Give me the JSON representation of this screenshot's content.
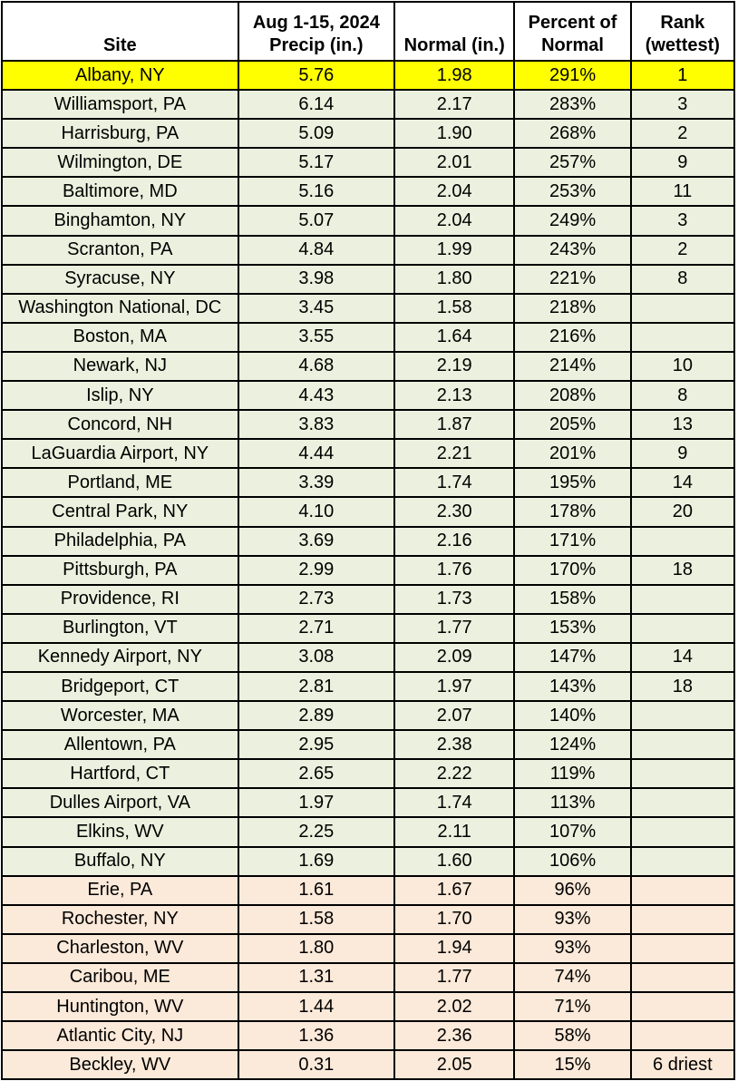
{
  "header": {
    "site": "Site",
    "precip_line1": "Aug 1-15, 2024",
    "precip_line2": "Precip (in.)",
    "normal": "Normal (in.)",
    "percent_line1": "Percent of",
    "percent_line2": "Normal",
    "rank_line1": "Rank",
    "rank_line2": "(wettest)"
  },
  "colors": {
    "yellow": "#ffff00",
    "green": "#ebf1de",
    "peach": "#fbe9d9",
    "border": "#000000"
  },
  "chart_data": {
    "type": "table",
    "columns": [
      "Site",
      "Aug 1-15, 2024 Precip (in.)",
      "Normal (in.)",
      "Percent of Normal",
      "Rank (wettest)"
    ],
    "rows": [
      {
        "site": "Albany, NY",
        "precip": "5.76",
        "normal": "1.98",
        "percent": "291%",
        "rank": "1",
        "band": "yellow"
      },
      {
        "site": "Williamsport, PA",
        "precip": "6.14",
        "normal": "2.17",
        "percent": "283%",
        "rank": "3",
        "band": "green"
      },
      {
        "site": "Harrisburg, PA",
        "precip": "5.09",
        "normal": "1.90",
        "percent": "268%",
        "rank": "2",
        "band": "green"
      },
      {
        "site": "Wilmington, DE",
        "precip": "5.17",
        "normal": "2.01",
        "percent": "257%",
        "rank": "9",
        "band": "green"
      },
      {
        "site": "Baltimore, MD",
        "precip": "5.16",
        "normal": "2.04",
        "percent": "253%",
        "rank": "11",
        "band": "green"
      },
      {
        "site": "Binghamton, NY",
        "precip": "5.07",
        "normal": "2.04",
        "percent": "249%",
        "rank": "3",
        "band": "green"
      },
      {
        "site": "Scranton, PA",
        "precip": "4.84",
        "normal": "1.99",
        "percent": "243%",
        "rank": "2",
        "band": "green"
      },
      {
        "site": "Syracuse, NY",
        "precip": "3.98",
        "normal": "1.80",
        "percent": "221%",
        "rank": "8",
        "band": "green"
      },
      {
        "site": "Washington National, DC",
        "precip": "3.45",
        "normal": "1.58",
        "percent": "218%",
        "rank": "",
        "band": "green"
      },
      {
        "site": "Boston, MA",
        "precip": "3.55",
        "normal": "1.64",
        "percent": "216%",
        "rank": "",
        "band": "green"
      },
      {
        "site": "Newark, NJ",
        "precip": "4.68",
        "normal": "2.19",
        "percent": "214%",
        "rank": "10",
        "band": "green"
      },
      {
        "site": "Islip, NY",
        "precip": "4.43",
        "normal": "2.13",
        "percent": "208%",
        "rank": "8",
        "band": "green"
      },
      {
        "site": "Concord, NH",
        "precip": "3.83",
        "normal": "1.87",
        "percent": "205%",
        "rank": "13",
        "band": "green"
      },
      {
        "site": "LaGuardia Airport, NY",
        "precip": "4.44",
        "normal": "2.21",
        "percent": "201%",
        "rank": "9",
        "band": "green"
      },
      {
        "site": "Portland, ME",
        "precip": "3.39",
        "normal": "1.74",
        "percent": "195%",
        "rank": "14",
        "band": "green"
      },
      {
        "site": "Central Park, NY",
        "precip": "4.10",
        "normal": "2.30",
        "percent": "178%",
        "rank": "20",
        "band": "green"
      },
      {
        "site": "Philadelphia, PA",
        "precip": "3.69",
        "normal": "2.16",
        "percent": "171%",
        "rank": "",
        "band": "green"
      },
      {
        "site": "Pittsburgh, PA",
        "precip": "2.99",
        "normal": "1.76",
        "percent": "170%",
        "rank": "18",
        "band": "green"
      },
      {
        "site": "Providence, RI",
        "precip": "2.73",
        "normal": "1.73",
        "percent": "158%",
        "rank": "",
        "band": "green"
      },
      {
        "site": "Burlington, VT",
        "precip": "2.71",
        "normal": "1.77",
        "percent": "153%",
        "rank": "",
        "band": "green"
      },
      {
        "site": "Kennedy Airport, NY",
        "precip": "3.08",
        "normal": "2.09",
        "percent": "147%",
        "rank": "14",
        "band": "green"
      },
      {
        "site": "Bridgeport, CT",
        "precip": "2.81",
        "normal": "1.97",
        "percent": "143%",
        "rank": "18",
        "band": "green"
      },
      {
        "site": "Worcester, MA",
        "precip": "2.89",
        "normal": "2.07",
        "percent": "140%",
        "rank": "",
        "band": "green"
      },
      {
        "site": "Allentown, PA",
        "precip": "2.95",
        "normal": "2.38",
        "percent": "124%",
        "rank": "",
        "band": "green"
      },
      {
        "site": "Hartford, CT",
        "precip": "2.65",
        "normal": "2.22",
        "percent": "119%",
        "rank": "",
        "band": "green"
      },
      {
        "site": "Dulles Airport, VA",
        "precip": "1.97",
        "normal": "1.74",
        "percent": "113%",
        "rank": "",
        "band": "green"
      },
      {
        "site": "Elkins, WV",
        "precip": "2.25",
        "normal": "2.11",
        "percent": "107%",
        "rank": "",
        "band": "green"
      },
      {
        "site": "Buffalo, NY",
        "precip": "1.69",
        "normal": "1.60",
        "percent": "106%",
        "rank": "",
        "band": "green"
      },
      {
        "site": "Erie, PA",
        "precip": "1.61",
        "normal": "1.67",
        "percent": "96%",
        "rank": "",
        "band": "peach"
      },
      {
        "site": "Rochester, NY",
        "precip": "1.58",
        "normal": "1.70",
        "percent": "93%",
        "rank": "",
        "band": "peach"
      },
      {
        "site": "Charleston, WV",
        "precip": "1.80",
        "normal": "1.94",
        "percent": "93%",
        "rank": "",
        "band": "peach"
      },
      {
        "site": "Caribou, ME",
        "precip": "1.31",
        "normal": "1.77",
        "percent": "74%",
        "rank": "",
        "band": "peach"
      },
      {
        "site": "Huntington, WV",
        "precip": "1.44",
        "normal": "2.02",
        "percent": "71%",
        "rank": "",
        "band": "peach"
      },
      {
        "site": "Atlantic City, NJ",
        "precip": "1.36",
        "normal": "2.36",
        "percent": "58%",
        "rank": "",
        "band": "peach"
      },
      {
        "site": "Beckley, WV",
        "precip": "0.31",
        "normal": "2.05",
        "percent": "15%",
        "rank": "6 driest",
        "band": "peach"
      }
    ]
  }
}
